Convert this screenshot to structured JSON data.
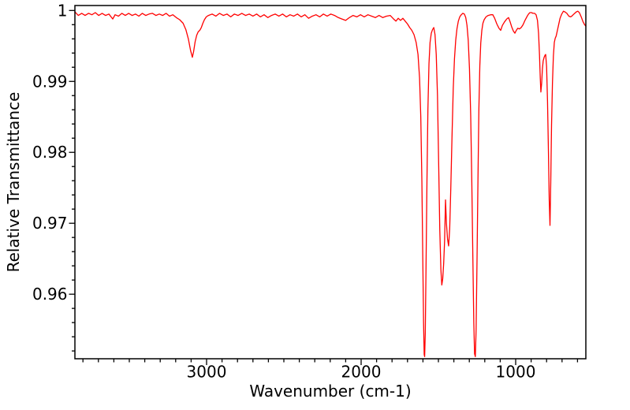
{
  "chart_data": {
    "type": "line",
    "title": "",
    "xlabel": "Wavenumber (cm-1)",
    "ylabel": "Relative Transmittance",
    "legend": "none",
    "grid": false,
    "line_color": "#ff0000",
    "axis_color": "#000000",
    "background_color": "#ffffff",
    "x_axis": {
      "min": 546,
      "max": 3852,
      "reversed": true,
      "major_ticks": [
        {
          "value": 3000,
          "label": "3000"
        },
        {
          "value": 2000,
          "label": "2000"
        },
        {
          "value": 1000,
          "label": "1000"
        }
      ],
      "minor_step": 100,
      "minor_range": [
        600,
        3800
      ]
    },
    "y_axis": {
      "min": 0.9509,
      "max": 1.0007,
      "major_ticks": [
        {
          "value": 1.0,
          "label": "1"
        },
        {
          "value": 0.99,
          "label": "0.99"
        },
        {
          "value": 0.98,
          "label": "0.98"
        },
        {
          "value": 0.97,
          "label": "0.97"
        },
        {
          "value": 0.96,
          "label": "0.96"
        }
      ],
      "minor_step": 0.002,
      "minor_range": [
        0.952,
        0.998
      ]
    },
    "notable_minima": [
      {
        "wavenumber": 3092,
        "transmittance": 0.9934
      },
      {
        "wavenumber": 1591,
        "transmittance": 0.9512
      },
      {
        "wavenumber": 1477,
        "transmittance": 0.9613
      },
      {
        "wavenumber": 1431,
        "transmittance": 0.9668
      },
      {
        "wavenumber": 1261,
        "transmittance": 0.9512
      },
      {
        "wavenumber": 1097,
        "transmittance": 0.9972
      },
      {
        "wavenumber": 1005,
        "transmittance": 0.9968
      },
      {
        "wavenumber": 837,
        "transmittance": 0.9885
      },
      {
        "wavenumber": 778,
        "transmittance": 0.9697
      }
    ],
    "series": [
      {
        "name": "spectrum",
        "points": [
          [
            3852,
            0.9998
          ],
          [
            3830,
            0.9993
          ],
          [
            3808,
            0.9996
          ],
          [
            3786,
            0.9993
          ],
          [
            3764,
            0.9996
          ],
          [
            3742,
            0.9994
          ],
          [
            3720,
            0.9997
          ],
          [
            3698,
            0.9993
          ],
          [
            3676,
            0.9996
          ],
          [
            3654,
            0.9993
          ],
          [
            3632,
            0.9995
          ],
          [
            3607,
            0.9988
          ],
          [
            3592,
            0.9994
          ],
          [
            3570,
            0.9992
          ],
          [
            3548,
            0.9996
          ],
          [
            3526,
            0.9993
          ],
          [
            3504,
            0.9996
          ],
          [
            3482,
            0.9993
          ],
          [
            3460,
            0.9995
          ],
          [
            3438,
            0.9992
          ],
          [
            3416,
            0.9996
          ],
          [
            3394,
            0.9993
          ],
          [
            3372,
            0.9995
          ],
          [
            3350,
            0.9996
          ],
          [
            3328,
            0.9993
          ],
          [
            3306,
            0.9995
          ],
          [
            3284,
            0.9993
          ],
          [
            3262,
            0.9996
          ],
          [
            3240,
            0.9992
          ],
          [
            3218,
            0.9994
          ],
          [
            3196,
            0.999
          ],
          [
            3174,
            0.9987
          ],
          [
            3152,
            0.9982
          ],
          [
            3134,
            0.9973
          ],
          [
            3118,
            0.996
          ],
          [
            3104,
            0.9944
          ],
          [
            3092,
            0.9934
          ],
          [
            3084,
            0.9942
          ],
          [
            3074,
            0.9956
          ],
          [
            3064,
            0.9965
          ],
          [
            3054,
            0.997
          ],
          [
            3044,
            0.9972
          ],
          [
            3034,
            0.9976
          ],
          [
            3024,
            0.9982
          ],
          [
            3014,
            0.9987
          ],
          [
            3002,
            0.9991
          ],
          [
            2988,
            0.9993
          ],
          [
            2964,
            0.9995
          ],
          [
            2940,
            0.9992
          ],
          [
            2916,
            0.9996
          ],
          [
            2892,
            0.9993
          ],
          [
            2868,
            0.9995
          ],
          [
            2844,
            0.9991
          ],
          [
            2820,
            0.9995
          ],
          [
            2796,
            0.9993
          ],
          [
            2772,
            0.9996
          ],
          [
            2748,
            0.9993
          ],
          [
            2724,
            0.9995
          ],
          [
            2700,
            0.9992
          ],
          [
            2676,
            0.9995
          ],
          [
            2652,
            0.9991
          ],
          [
            2628,
            0.9994
          ],
          [
            2604,
            0.999
          ],
          [
            2580,
            0.9993
          ],
          [
            2556,
            0.9995
          ],
          [
            2532,
            0.9992
          ],
          [
            2508,
            0.9995
          ],
          [
            2484,
            0.9991
          ],
          [
            2460,
            0.9994
          ],
          [
            2436,
            0.9992
          ],
          [
            2412,
            0.9995
          ],
          [
            2388,
            0.9991
          ],
          [
            2364,
            0.9994
          ],
          [
            2340,
            0.9989
          ],
          [
            2316,
            0.9992
          ],
          [
            2292,
            0.9994
          ],
          [
            2268,
            0.9991
          ],
          [
            2244,
            0.9995
          ],
          [
            2220,
            0.9992
          ],
          [
            2196,
            0.9995
          ],
          [
            2172,
            0.9993
          ],
          [
            2148,
            0.999
          ],
          [
            2124,
            0.9988
          ],
          [
            2100,
            0.9986
          ],
          [
            2076,
            0.999
          ],
          [
            2052,
            0.9993
          ],
          [
            2028,
            0.9991
          ],
          [
            2004,
            0.9994
          ],
          [
            1980,
            0.9991
          ],
          [
            1956,
            0.9994
          ],
          [
            1932,
            0.9992
          ],
          [
            1908,
            0.999
          ],
          [
            1884,
            0.9993
          ],
          [
            1860,
            0.999
          ],
          [
            1836,
            0.9992
          ],
          [
            1812,
            0.9993
          ],
          [
            1790,
            0.9988
          ],
          [
            1775,
            0.9985
          ],
          [
            1760,
            0.9989
          ],
          [
            1745,
            0.9986
          ],
          [
            1730,
            0.9989
          ],
          [
            1715,
            0.9985
          ],
          [
            1700,
            0.9981
          ],
          [
            1686,
            0.9976
          ],
          [
            1672,
            0.9972
          ],
          [
            1658,
            0.9966
          ],
          [
            1644,
            0.9955
          ],
          [
            1632,
            0.9938
          ],
          [
            1622,
            0.9905
          ],
          [
            1614,
            0.985
          ],
          [
            1607,
            0.976
          ],
          [
            1601,
            0.965
          ],
          [
            1596,
            0.956
          ],
          [
            1592,
            0.9515
          ],
          [
            1589,
            0.9512
          ],
          [
            1585,
            0.9545
          ],
          [
            1580,
            0.964
          ],
          [
            1574,
            0.976
          ],
          [
            1568,
            0.986
          ],
          [
            1561,
            0.9925
          ],
          [
            1554,
            0.9955
          ],
          [
            1546,
            0.9968
          ],
          [
            1538,
            0.9973
          ],
          [
            1530,
            0.9976
          ],
          [
            1522,
            0.9966
          ],
          [
            1514,
            0.9938
          ],
          [
            1506,
            0.988
          ],
          [
            1498,
            0.978
          ],
          [
            1491,
            0.969
          ],
          [
            1484,
            0.9635
          ],
          [
            1478,
            0.9613
          ],
          [
            1472,
            0.9622
          ],
          [
            1466,
            0.9643
          ],
          [
            1460,
            0.9675
          ],
          [
            1454,
            0.9733
          ],
          [
            1448,
            0.97
          ],
          [
            1441,
            0.9678
          ],
          [
            1434,
            0.9668
          ],
          [
            1427,
            0.9692
          ],
          [
            1420,
            0.9748
          ],
          [
            1412,
            0.9822
          ],
          [
            1404,
            0.989
          ],
          [
            1396,
            0.9932
          ],
          [
            1388,
            0.9958
          ],
          [
            1380,
            0.9974
          ],
          [
            1371,
            0.9985
          ],
          [
            1362,
            0.9991
          ],
          [
            1352,
            0.9994
          ],
          [
            1342,
            0.9996
          ],
          [
            1332,
            0.9995
          ],
          [
            1323,
            0.999
          ],
          [
            1315,
            0.9979
          ],
          [
            1307,
            0.9958
          ],
          [
            1299,
            0.9918
          ],
          [
            1291,
            0.9852
          ],
          [
            1284,
            0.976
          ],
          [
            1277,
            0.965
          ],
          [
            1271,
            0.956
          ],
          [
            1266,
            0.9516
          ],
          [
            1261,
            0.9512
          ],
          [
            1256,
            0.955
          ],
          [
            1250,
            0.965
          ],
          [
            1244,
            0.9762
          ],
          [
            1238,
            0.9862
          ],
          [
            1232,
            0.9922
          ],
          [
            1226,
            0.9954
          ],
          [
            1219,
            0.9972
          ],
          [
            1212,
            0.9982
          ],
          [
            1204,
            0.9987
          ],
          [
            1192,
            0.9991
          ],
          [
            1178,
            0.9993
          ],
          [
            1162,
            0.9994
          ],
          [
            1148,
            0.9994
          ],
          [
            1136,
            0.9989
          ],
          [
            1122,
            0.9981
          ],
          [
            1108,
            0.9975
          ],
          [
            1097,
            0.9972
          ],
          [
            1086,
            0.9979
          ],
          [
            1072,
            0.9984
          ],
          [
            1058,
            0.9988
          ],
          [
            1046,
            0.999
          ],
          [
            1036,
            0.9984
          ],
          [
            1026,
            0.9977
          ],
          [
            1015,
            0.9971
          ],
          [
            1005,
            0.9968
          ],
          [
            996,
            0.9972
          ],
          [
            986,
            0.9975
          ],
          [
            976,
            0.9974
          ],
          [
            964,
            0.9976
          ],
          [
            952,
            0.998
          ],
          [
            940,
            0.9986
          ],
          [
            928,
            0.9991
          ],
          [
            917,
            0.9995
          ],
          [
            908,
            0.9997
          ],
          [
            898,
            0.9997
          ],
          [
            888,
            0.9996
          ],
          [
            878,
            0.9996
          ],
          [
            868,
            0.9994
          ],
          [
            859,
            0.9986
          ],
          [
            852,
            0.9968
          ],
          [
            846,
            0.9938
          ],
          [
            841,
            0.9905
          ],
          [
            837,
            0.9885
          ],
          [
            832,
            0.9897
          ],
          [
            827,
            0.9918
          ],
          [
            822,
            0.9929
          ],
          [
            816,
            0.9934
          ],
          [
            810,
            0.9937
          ],
          [
            806,
            0.9938
          ],
          [
            800,
            0.9921
          ],
          [
            794,
            0.9872
          ],
          [
            788,
            0.98
          ],
          [
            783,
            0.9733
          ],
          [
            778,
            0.9697
          ],
          [
            773,
            0.9758
          ],
          [
            768,
            0.9838
          ],
          [
            762,
            0.9898
          ],
          [
            756,
            0.9936
          ],
          [
            750,
            0.9955
          ],
          [
            744,
            0.9961
          ],
          [
            738,
            0.9964
          ],
          [
            731,
            0.9971
          ],
          [
            723,
            0.9979
          ],
          [
            713,
            0.9989
          ],
          [
            702,
            0.9995
          ],
          [
            691,
            0.9999
          ],
          [
            681,
            0.9998
          ],
          [
            669,
            0.9996
          ],
          [
            656,
            0.9992
          ],
          [
            645,
            0.9991
          ],
          [
            637,
            0.9992
          ],
          [
            628,
            0.9994
          ],
          [
            618,
            0.9996
          ],
          [
            608,
            0.9998
          ],
          [
            598,
            0.9999
          ],
          [
            588,
            0.9997
          ],
          [
            576,
            0.9991
          ],
          [
            564,
            0.9984
          ],
          [
            554,
            0.998
          ],
          [
            546,
            0.9978
          ]
        ]
      }
    ]
  }
}
